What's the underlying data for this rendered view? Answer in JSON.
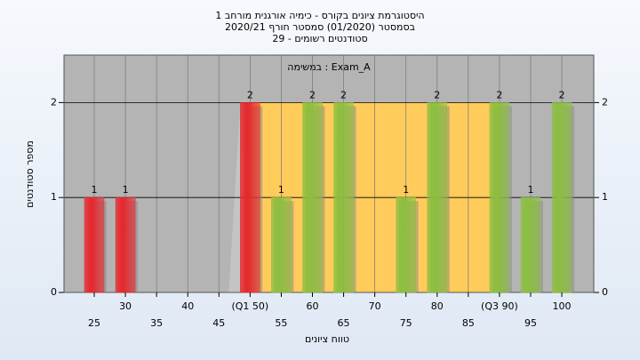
{
  "chart_data": {
    "type": "bar",
    "title": "היסטוגרמת ציונים בקורס - כימיה אורגנית מורחב 1",
    "subtitle": "בסמסטר  (01/2020)  סמסטר חורף 2020/21",
    "subtitle2": "סטודנטים רשומים - 29",
    "annotation": "במשימה : Exam_A",
    "x_label": "טווח ציונים",
    "y_label": "מספר סטודנטים",
    "categories": [
      "25",
      "30",
      "35",
      "40",
      "45",
      "(Q1 50)",
      "55",
      "60",
      "65",
      "70",
      "75",
      "80",
      "85",
      "(Q3 90)",
      "95",
      "100"
    ],
    "series": [
      {
        "name": "students",
        "values": [
          1,
          1,
          0,
          0,
          0,
          2,
          1,
          2,
          2,
          0,
          1,
          2,
          0,
          2,
          1,
          2
        ],
        "colors": [
          "#e8262b",
          "#e8262b",
          "#8cbf3f",
          "#8cbf3f",
          "#8cbf3f",
          "#e8262b",
          "#8cbf3f",
          "#8cbf3f",
          "#8cbf3f",
          "#8cbf3f",
          "#8cbf3f",
          "#8cbf3f",
          "#8cbf3f",
          "#8cbf3f",
          "#8cbf3f",
          "#8cbf3f"
        ]
      }
    ],
    "ylim": [
      0,
      2.5
    ],
    "yticks": [
      0,
      1,
      2
    ],
    "grid": true
  }
}
